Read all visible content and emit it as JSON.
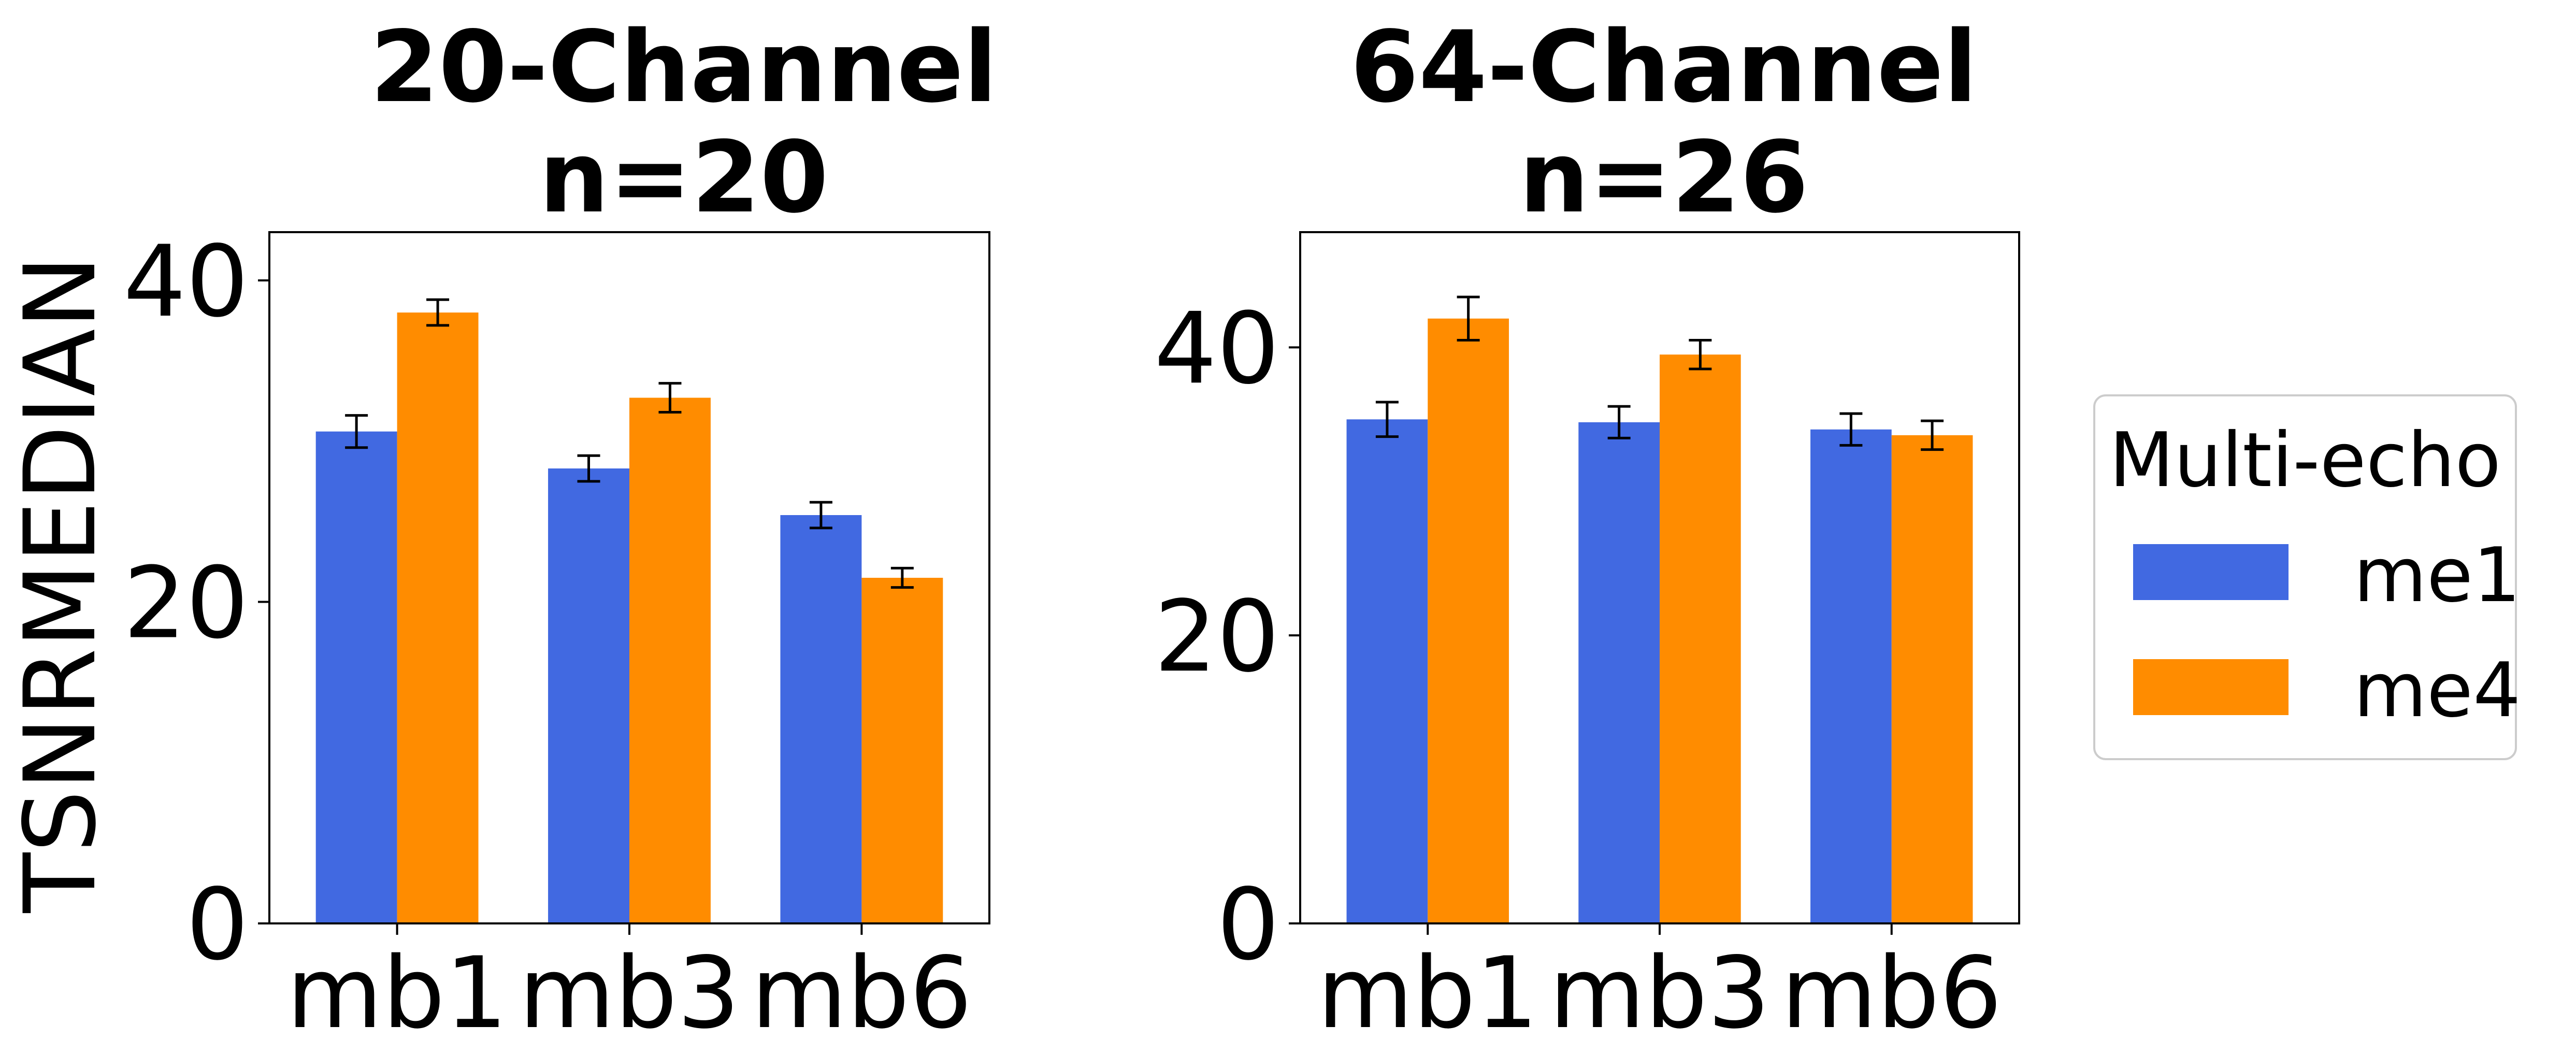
{
  "chart_data": {
    "type": "bar",
    "ylabel": "TSNRMEDIAN",
    "categories": [
      "mb1",
      "mb3",
      "mb6"
    ],
    "legend": {
      "title": "Multi-echo",
      "placement": "right",
      "frame": true
    },
    "colors": {
      "me1": "#4169e1",
      "me4": "#ff8c00"
    },
    "panels": [
      {
        "title_line1": "20-Channel",
        "title_line2": "n=20",
        "ylim": [
          0,
          43
        ],
        "yticks": [
          0,
          20,
          40
        ],
        "grid": false,
        "series": [
          {
            "name": "me1",
            "values": [
              30.6,
              28.3,
              25.4
            ],
            "errors": [
              1.0,
              0.8,
              0.8
            ]
          },
          {
            "name": "me4",
            "values": [
              38.0,
              32.7,
              21.5
            ],
            "errors": [
              0.8,
              0.9,
              0.6
            ]
          }
        ]
      },
      {
        "title_line1": "64-Channel",
        "title_line2": "n=26",
        "ylim": [
          0,
          48
        ],
        "yticks": [
          0,
          20,
          40
        ],
        "grid": false,
        "series": [
          {
            "name": "me1",
            "values": [
              35.0,
              34.8,
              34.3
            ],
            "errors": [
              1.2,
              1.1,
              1.1
            ]
          },
          {
            "name": "me4",
            "values": [
              42.0,
              39.5,
              33.9
            ],
            "errors": [
              1.5,
              1.0,
              1.0
            ]
          }
        ]
      }
    ]
  }
}
